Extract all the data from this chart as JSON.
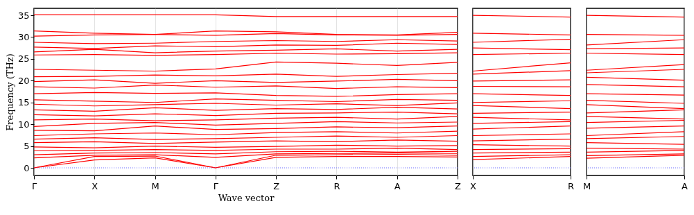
{
  "chart_data": [
    {
      "type": "line",
      "xlabel": "Wave vector",
      "ylabel": "Frequency (THz)",
      "grid": "x",
      "line_style": "solid",
      "categories": [
        "Γ",
        "X",
        "M",
        "Γ",
        "Z",
        "R",
        "A",
        "Z"
      ],
      "ylim": [
        -1.75,
        36.6
      ],
      "yticks": [
        0,
        5,
        10,
        15,
        20,
        25,
        30,
        35
      ],
      "ref_lines": [
        {
          "axis": "y",
          "value": 0,
          "color": "#6a6aff",
          "line_style": "dotted"
        }
      ],
      "series": [
        {
          "color": "#ff0000",
          "values": [
            0,
            1.8,
            2.3,
            0,
            2.4,
            2.6,
            2.6,
            2.5
          ]
        },
        {
          "color": "#ff0000",
          "values": [
            0,
            2.6,
            2.7,
            0,
            2.9,
            3.0,
            3.1,
            2.9
          ]
        },
        {
          "color": "#ff0000",
          "values": [
            2.3,
            2.9,
            3.0,
            2.4,
            3.2,
            3.3,
            3.4,
            3.3
          ]
        },
        {
          "color": "#ff0000",
          "values": [
            3.0,
            3.4,
            3.5,
            3.2,
            3.7,
            3.8,
            3.6,
            3.8
          ]
        },
        {
          "color": "#ff0000",
          "values": [
            3.9,
            4.0,
            4.2,
            4.0,
            4.3,
            4.3,
            4.5,
            4.2
          ]
        },
        {
          "color": "#ff0000",
          "values": [
            4.8,
            4.6,
            5.0,
            4.7,
            4.9,
            5.2,
            5.0,
            5.1
          ]
        },
        {
          "color": "#ff0000",
          "values": [
            5.8,
            6.0,
            5.6,
            5.9,
            6.2,
            6.0,
            6.4,
            6.1
          ]
        },
        {
          "color": "#ff0000",
          "values": [
            6.6,
            6.9,
            6.5,
            6.7,
            7.0,
            7.3,
            7.0,
            7.4
          ]
        },
        {
          "color": "#ff0000",
          "values": [
            7.4,
            7.8,
            8.0,
            7.6,
            8.1,
            8.3,
            8.0,
            8.4
          ]
        },
        {
          "color": "#ff0000",
          "values": [
            8.6,
            8.5,
            9.6,
            8.8,
            9.0,
            9.4,
            9.2,
            9.6
          ]
        },
        {
          "color": "#ff0000",
          "values": [
            9.5,
            10.2,
            10.4,
            9.8,
            10.2,
            10.6,
            10.3,
            10.5
          ]
        },
        {
          "color": "#ff0000",
          "values": [
            11.0,
            11.2,
            10.8,
            11.0,
            11.4,
            11.6,
            11.2,
            11.8
          ]
        },
        {
          "color": "#ff0000",
          "values": [
            12.2,
            11.9,
            12.4,
            12.0,
            12.5,
            12.6,
            12.8,
            12.4
          ]
        },
        {
          "color": "#ff0000",
          "values": [
            13.3,
            13.0,
            13.8,
            13.2,
            13.6,
            13.4,
            13.9,
            13.5
          ]
        },
        {
          "color": "#ff0000",
          "values": [
            14.6,
            14.2,
            14.5,
            14.8,
            14.4,
            14.7,
            14.3,
            14.9
          ]
        },
        {
          "color": "#ff0000",
          "values": [
            15.6,
            15.3,
            15.0,
            15.8,
            15.5,
            15.2,
            15.7,
            15.5
          ]
        },
        {
          "color": "#ff0000",
          "values": [
            17.0,
            17.3,
            17.1,
            17.2,
            16.6,
            16.4,
            16.8,
            17.0
          ]
        },
        {
          "color": "#ff0000",
          "values": [
            18.6,
            18.3,
            19.0,
            18.5,
            18.8,
            18.2,
            18.6,
            18.4
          ]
        },
        {
          "color": "#ff0000",
          "values": [
            19.8,
            20.2,
            19.4,
            20.0,
            19.6,
            19.9,
            20.3,
            20.0
          ]
        },
        {
          "color": "#ff0000",
          "values": [
            20.9,
            21.0,
            21.3,
            21.1,
            21.5,
            21.0,
            21.4,
            21.7
          ]
        },
        {
          "color": "#ff0000",
          "values": [
            22.6,
            22.4,
            22.2,
            22.7,
            24.3,
            24.0,
            23.5,
            24.2
          ]
        },
        {
          "color": "#ff0000",
          "values": [
            25.9,
            26.0,
            25.8,
            26.0,
            26.3,
            26.1,
            26.2,
            26.4
          ]
        },
        {
          "color": "#ff0000",
          "values": [
            26.6,
            27.2,
            26.4,
            26.8,
            27.0,
            27.3,
            26.8,
            27.2
          ]
        },
        {
          "color": "#ff0000",
          "values": [
            27.7,
            27.4,
            28.0,
            27.8,
            28.2,
            28.1,
            28.6,
            28.3
          ]
        },
        {
          "color": "#ff0000",
          "values": [
            28.8,
            28.5,
            28.6,
            29.0,
            29.2,
            29.0,
            29.4,
            29.1
          ]
        },
        {
          "color": "#ff0000",
          "values": [
            30.2,
            30.5,
            30.6,
            30.4,
            30.8,
            30.5,
            30.4,
            30.6
          ]
        },
        {
          "color": "#ff0000",
          "values": [
            31.4,
            30.9,
            30.6,
            31.4,
            31.2,
            30.6,
            30.5,
            31.1
          ]
        },
        {
          "color": "#ff0000",
          "values": [
            35.1,
            35.1,
            35.1,
            35.1,
            34.7,
            34.7,
            34.7,
            34.7
          ]
        }
      ]
    },
    {
      "type": "line",
      "tick_labels": "x",
      "grid": "x",
      "line_style": "solid",
      "categories": [
        "X",
        "R"
      ],
      "ylim": [
        -1.75,
        36.6
      ],
      "ref_lines": [
        {
          "axis": "y",
          "value": 0,
          "color": "#6a6aff",
          "line_style": "dotted"
        }
      ],
      "series": [
        {
          "color": "#ff0000",
          "values": [
            1.9,
            2.6
          ]
        },
        {
          "color": "#ff0000",
          "values": [
            2.6,
            3.0
          ]
        },
        {
          "color": "#ff0000",
          "values": [
            3.4,
            3.6
          ]
        },
        {
          "color": "#ff0000",
          "values": [
            4.2,
            4.4
          ]
        },
        {
          "color": "#ff0000",
          "values": [
            5.3,
            5.0
          ]
        },
        {
          "color": "#ff0000",
          "values": [
            6.2,
            6.6
          ]
        },
        {
          "color": "#ff0000",
          "values": [
            7.4,
            7.8
          ]
        },
        {
          "color": "#ff0000",
          "values": [
            8.9,
            9.6
          ]
        },
        {
          "color": "#ff0000",
          "values": [
            10.2,
            10.6
          ]
        },
        {
          "color": "#ff0000",
          "values": [
            11.6,
            11.0
          ]
        },
        {
          "color": "#ff0000",
          "values": [
            12.5,
            12.8
          ]
        },
        {
          "color": "#ff0000",
          "values": [
            14.3,
            13.6
          ]
        },
        {
          "color": "#ff0000",
          "values": [
            15.0,
            15.4
          ]
        },
        {
          "color": "#ff0000",
          "values": [
            17.0,
            16.6
          ]
        },
        {
          "color": "#ff0000",
          "values": [
            18.7,
            18.6
          ]
        },
        {
          "color": "#ff0000",
          "values": [
            19.9,
            20.2
          ]
        },
        {
          "color": "#ff0000",
          "values": [
            21.5,
            22.3
          ]
        },
        {
          "color": "#ff0000",
          "values": [
            22.2,
            24.1
          ]
        },
        {
          "color": "#ff0000",
          "values": [
            26.0,
            26.3
          ]
        },
        {
          "color": "#ff0000",
          "values": [
            27.5,
            27.1
          ]
        },
        {
          "color": "#ff0000",
          "values": [
            28.8,
            29.5
          ]
        },
        {
          "color": "#ff0000",
          "values": [
            30.9,
            30.5
          ]
        },
        {
          "color": "#ff0000",
          "values": [
            35.0,
            34.6
          ]
        }
      ]
    },
    {
      "type": "line",
      "tick_labels": "x",
      "grid": "x",
      "line_style": "solid",
      "categories": [
        "M",
        "A"
      ],
      "ylim": [
        -1.75,
        36.6
      ],
      "ref_lines": [
        {
          "axis": "y",
          "value": 0,
          "color": "#6a6aff",
          "line_style": "dotted"
        }
      ],
      "series": [
        {
          "color": "#ff0000",
          "values": [
            2.2,
            2.9
          ]
        },
        {
          "color": "#ff0000",
          "values": [
            2.8,
            3.2
          ]
        },
        {
          "color": "#ff0000",
          "values": [
            3.6,
            4.0
          ]
        },
        {
          "color": "#ff0000",
          "values": [
            4.5,
            4.3
          ]
        },
        {
          "color": "#ff0000",
          "values": [
            5.8,
            5.4
          ]
        },
        {
          "color": "#ff0000",
          "values": [
            6.7,
            7.2
          ]
        },
        {
          "color": "#ff0000",
          "values": [
            7.4,
            8.3
          ]
        },
        {
          "color": "#ff0000",
          "values": [
            9.1,
            9.6
          ]
        },
        {
          "color": "#ff0000",
          "values": [
            10.4,
            10.9
          ]
        },
        {
          "color": "#ff0000",
          "values": [
            11.8,
            11.2
          ]
        },
        {
          "color": "#ff0000",
          "values": [
            12.6,
            13.3
          ]
        },
        {
          "color": "#ff0000",
          "values": [
            14.5,
            13.6
          ]
        },
        {
          "color": "#ff0000",
          "values": [
            15.5,
            14.8
          ]
        },
        {
          "color": "#ff0000",
          "values": [
            17.0,
            16.7
          ]
        },
        {
          "color": "#ff0000",
          "values": [
            19.1,
            18.6
          ]
        },
        {
          "color": "#ff0000",
          "values": [
            20.8,
            20.1
          ]
        },
        {
          "color": "#ff0000",
          "values": [
            21.8,
            22.6
          ]
        },
        {
          "color": "#ff0000",
          "values": [
            22.4,
            23.7
          ]
        },
        {
          "color": "#ff0000",
          "values": [
            26.3,
            26.0
          ]
        },
        {
          "color": "#ff0000",
          "values": [
            27.3,
            27.5
          ]
        },
        {
          "color": "#ff0000",
          "values": [
            28.2,
            29.4
          ]
        },
        {
          "color": "#ff0000",
          "values": [
            30.6,
            30.4
          ]
        },
        {
          "color": "#ff0000",
          "values": [
            35.0,
            34.6
          ]
        }
      ]
    }
  ]
}
